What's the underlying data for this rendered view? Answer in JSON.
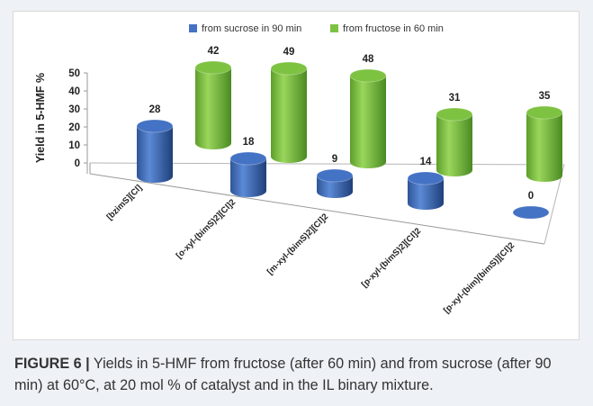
{
  "chart_data": {
    "type": "bar",
    "style": "3d-cylinder",
    "categories": [
      "[bzimS][Cl]",
      "[o-xyl-(bimS)2][Cl]2",
      "[m-xyl-(bimS)2][Cl]2",
      "[p-xyl-(bimS)2][Cl]2",
      "[p-xyl-(bim)(bimS)][Cl]2"
    ],
    "series": [
      {
        "name": "from sucrose in 90 min",
        "values": [
          28,
          18,
          9,
          14,
          0
        ],
        "color": "#4472c4"
      },
      {
        "name": "from fructose in 60 min",
        "values": [
          42,
          49,
          48,
          31,
          35
        ],
        "color": "#7ec242"
      }
    ],
    "ylabel": "Yield in 5-HMF %",
    "yticks": [
      "0",
      "10",
      "20",
      "30",
      "40",
      "50"
    ],
    "ylim": [
      0,
      50
    ],
    "legend_position": "top",
    "grid": false
  },
  "caption": {
    "label": "FIGURE 6 |",
    "text": " Yields in 5-HMF from fructose (after 60 min) and from sucrose (after 90 min) at 60°C, at 20 mol % of catalyst and in the IL binary mixture."
  }
}
